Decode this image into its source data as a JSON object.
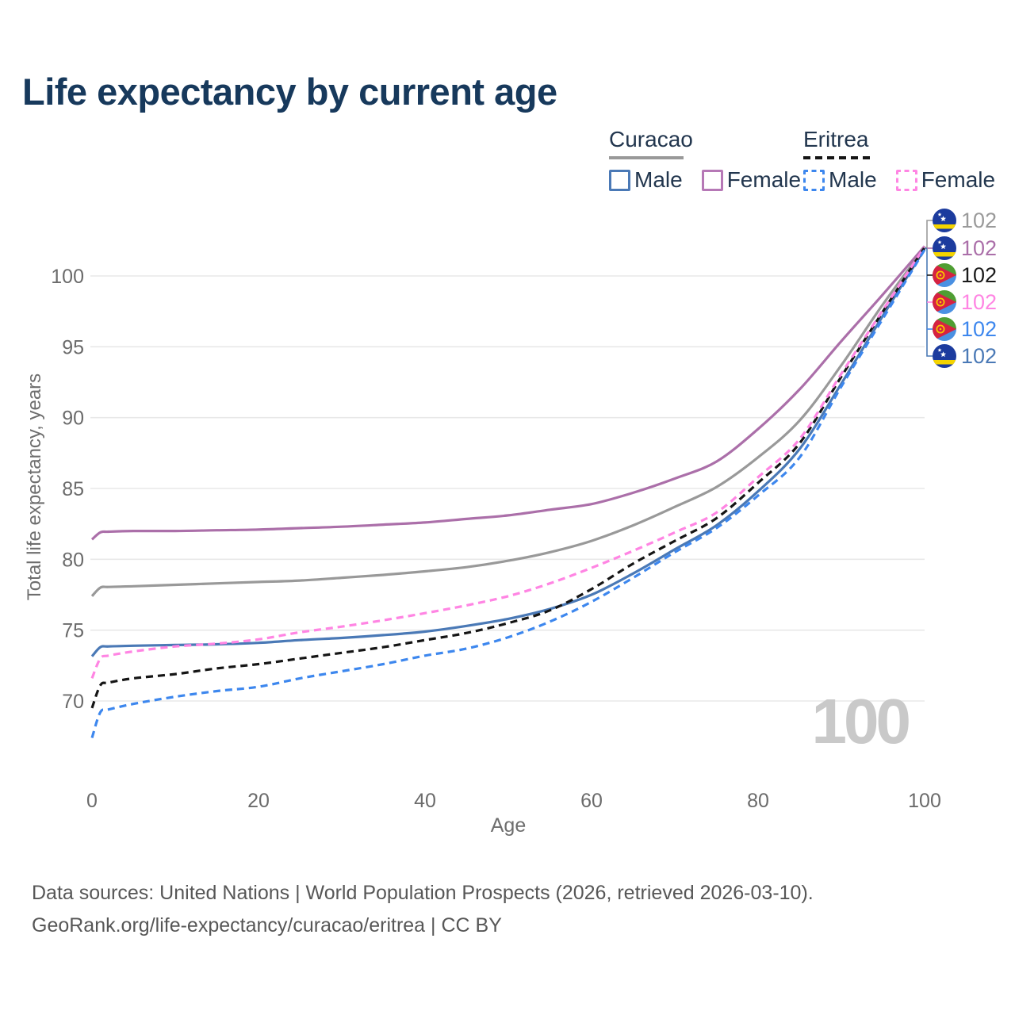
{
  "title": "Life expectancy by current age",
  "watermark": "100",
  "legend": {
    "groups": [
      {
        "id": "curacao",
        "label": "Curacao",
        "line_style": "solid",
        "line_color": "#999999",
        "items": [
          {
            "id": "curacao-male",
            "label": "Male",
            "color": "#4a79b6"
          },
          {
            "id": "curacao-female",
            "label": "Female",
            "color": "#b678b6"
          }
        ]
      },
      {
        "id": "eritrea",
        "label": "Eritrea",
        "line_style": "dashed",
        "line_color": "#151515",
        "items": [
          {
            "id": "eritrea-male",
            "label": "Male",
            "color": "#3d87ee"
          },
          {
            "id": "eritrea-female",
            "label": "Female",
            "color": "#ff85e3"
          }
        ]
      }
    ]
  },
  "chart_data": {
    "type": "line",
    "title": "Life expectancy by current age",
    "xlabel": "Age",
    "ylabel": "Total life expectancy, years",
    "xlim": [
      0,
      100
    ],
    "ylim": [
      66.5,
      103
    ],
    "x_ticks": [
      0,
      20,
      40,
      60,
      80,
      100
    ],
    "y_ticks": [
      70,
      75,
      80,
      85,
      90,
      95,
      100
    ],
    "grid": "horizontal",
    "gridline_color": "#e8e8e8",
    "tick_label_color": "#6b6b6b",
    "x": [
      0,
      1,
      2,
      5,
      10,
      15,
      20,
      25,
      30,
      35,
      40,
      45,
      50,
      55,
      60,
      65,
      70,
      75,
      80,
      85,
      90,
      95,
      100
    ],
    "series": [
      {
        "name": "Curacao Total",
        "country": "Curacao",
        "sex": "both",
        "color": "#999999",
        "dashed": false,
        "values": [
          77.4,
          78.0,
          78.05,
          78.1,
          78.2,
          78.3,
          78.4,
          78.5,
          78.7,
          78.9,
          79.15,
          79.45,
          79.9,
          80.5,
          81.3,
          82.4,
          83.7,
          85.1,
          87.2,
          89.8,
          93.7,
          98.0,
          102.0
        ]
      },
      {
        "name": "Curacao Female",
        "country": "Curacao",
        "sex": "female",
        "color": "#ab6fa9",
        "dashed": false,
        "values": [
          81.4,
          81.9,
          81.95,
          82.0,
          82.0,
          82.05,
          82.1,
          82.2,
          82.3,
          82.45,
          82.6,
          82.85,
          83.1,
          83.5,
          83.9,
          84.7,
          85.7,
          86.9,
          89.2,
          92.0,
          95.4,
          98.7,
          102.1
        ]
      },
      {
        "name": "Curacao Male",
        "country": "Curacao",
        "sex": "male",
        "color": "#4a79b6",
        "dashed": false,
        "values": [
          73.15,
          73.8,
          73.85,
          73.9,
          73.95,
          74.0,
          74.1,
          74.3,
          74.45,
          74.65,
          74.9,
          75.3,
          75.8,
          76.5,
          77.5,
          79.0,
          80.7,
          82.4,
          84.8,
          87.8,
          92.4,
          97.2,
          101.9
        ]
      },
      {
        "name": "Eritrea Total",
        "country": "Eritrea",
        "sex": "both",
        "color": "#151515",
        "dashed": true,
        "values": [
          69.5,
          71.1,
          71.3,
          71.6,
          71.9,
          72.3,
          72.6,
          73.0,
          73.4,
          73.8,
          74.3,
          74.8,
          75.5,
          76.4,
          77.9,
          79.7,
          81.3,
          82.9,
          85.4,
          88.2,
          92.9,
          97.5,
          102.0
        ]
      },
      {
        "name": "Eritrea Female",
        "country": "Eritrea",
        "sex": "female",
        "color": "#ff85e3",
        "dashed": true,
        "values": [
          71.6,
          73.0,
          73.2,
          73.5,
          73.85,
          74.05,
          74.35,
          74.85,
          75.25,
          75.7,
          76.2,
          76.75,
          77.4,
          78.3,
          79.4,
          80.6,
          81.9,
          83.3,
          85.8,
          88.5,
          93.1,
          97.6,
          102.05
        ]
      },
      {
        "name": "Eritrea Male",
        "country": "Eritrea",
        "sex": "male",
        "color": "#3d87ee",
        "dashed": true,
        "values": [
          67.4,
          69.2,
          69.4,
          69.8,
          70.3,
          70.7,
          71.0,
          71.6,
          72.1,
          72.6,
          73.2,
          73.7,
          74.5,
          75.6,
          77.0,
          78.7,
          80.5,
          82.2,
          84.5,
          87.2,
          92.2,
          97.0,
          101.85
        ]
      }
    ]
  },
  "end_labels": [
    {
      "flag": "curacao",
      "value": "102",
      "color": "#9a9a9a"
    },
    {
      "flag": "curacao",
      "value": "102",
      "color": "#ab6fa9"
    },
    {
      "flag": "eritrea",
      "value": "102",
      "color": "#1a1a1a"
    },
    {
      "flag": "eritrea",
      "value": "102",
      "color": "#ff85e3"
    },
    {
      "flag": "eritrea",
      "value": "102",
      "color": "#3d87ee"
    },
    {
      "flag": "curacao",
      "value": "102",
      "color": "#4a79b6"
    }
  ],
  "footer": {
    "line1": "Data sources: United Nations | World Population Prospects (2026, retrieved 2026-03-10).",
    "line2": "GeoRank.org/life-expectancy/curacao/eritrea | CC BY"
  }
}
